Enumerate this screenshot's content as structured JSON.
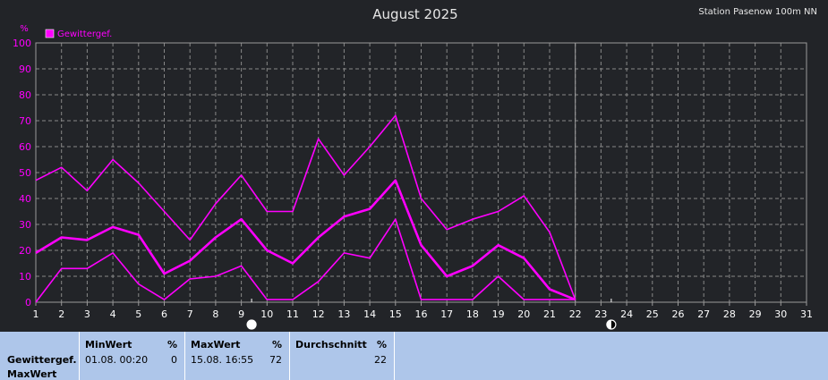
{
  "header": {
    "title": "August 2025",
    "station": "Station Pasenow 100m NN"
  },
  "colors": {
    "series": "#ff00ff",
    "grid": "#888888",
    "axis_text": "#ff00ff",
    "tick_text": "#ffffff",
    "background": "#222428",
    "footer": "#aec6ea"
  },
  "chart_data": {
    "type": "line",
    "ylabel": "%",
    "ylim": [
      0,
      100
    ],
    "yticks": [
      0,
      10,
      20,
      30,
      40,
      50,
      60,
      70,
      80,
      90,
      100
    ],
    "xlim": [
      1,
      31
    ],
    "x": [
      1,
      2,
      3,
      4,
      5,
      6,
      7,
      8,
      9,
      10,
      11,
      12,
      13,
      14,
      15,
      16,
      17,
      18,
      19,
      20,
      21,
      22
    ],
    "xticks": [
      "1",
      "2",
      "3",
      "4",
      "5",
      "6",
      "7",
      "8",
      "9",
      "10",
      "11",
      "12",
      "13",
      "14",
      "15",
      "16",
      "17",
      "18",
      "19",
      "20",
      "21",
      "22",
      "23",
      "24",
      "25",
      "26",
      "27",
      "28",
      "29",
      "30",
      "31"
    ],
    "grid": true,
    "legend": {
      "placement": "top-left",
      "entries": [
        "Gewittergef."
      ]
    },
    "series": [
      {
        "name": "Gewittergef.",
        "role": "max",
        "values": [
          47,
          52,
          43,
          55,
          46,
          35,
          24,
          38,
          49,
          35,
          35,
          63,
          49,
          60,
          72,
          40,
          28,
          32,
          35,
          41,
          27,
          1
        ]
      },
      {
        "name": "Gewittergef.",
        "role": "mean",
        "values": [
          19,
          25,
          24,
          29,
          26,
          11,
          16,
          25,
          32,
          20,
          15,
          25,
          33,
          36,
          47,
          22,
          10,
          14,
          22,
          17,
          5,
          1
        ]
      },
      {
        "name": "Gewittergef.",
        "role": "min",
        "values": [
          0,
          13,
          13,
          19,
          7,
          1,
          9,
          10,
          14,
          1,
          1,
          8,
          19,
          17,
          32,
          1,
          1,
          1,
          10,
          1,
          1,
          1
        ]
      }
    ],
    "marker_day": 22,
    "moon_phases": [
      {
        "day": 9.4,
        "phase": "full"
      },
      {
        "day": 23.4,
        "phase": "last-quarter"
      }
    ]
  },
  "footer": {
    "row_label_1": "Gewittergef.",
    "row_label_2": "MaxWert",
    "min": {
      "header": "MinWert",
      "unit": "%",
      "date": "01.08.  00:20",
      "value": "0"
    },
    "max": {
      "header": "MaxWert",
      "unit": "%",
      "date": "15.08.  16:55",
      "value": "72"
    },
    "avg": {
      "header": "Durchschnitt",
      "unit": "%",
      "value": "22"
    }
  }
}
